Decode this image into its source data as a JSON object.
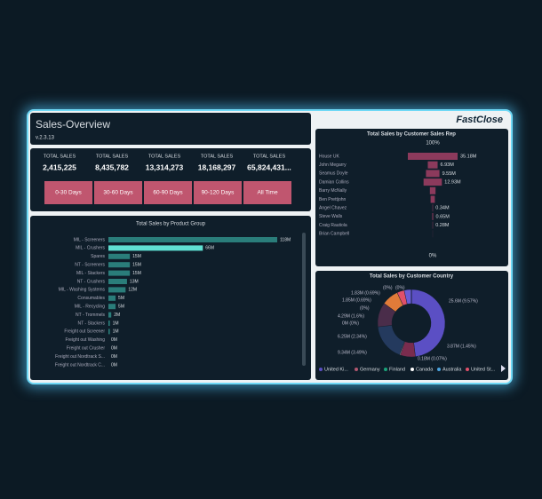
{
  "header": {
    "title": "Sales-Overview",
    "version": "v.2.3.13",
    "logo": "FastClose"
  },
  "kpis": [
    {
      "label": "TOTAL SALES",
      "value": "2,415,225"
    },
    {
      "label": "TOTAL SALES",
      "value": "8,435,782"
    },
    {
      "label": "TOTAL SALES",
      "value": "13,314,273"
    },
    {
      "label": "TOTAL SALES",
      "value": "18,168,297"
    },
    {
      "label": "TOTAL SALES",
      "value": "65,824,431..."
    }
  ],
  "buttons": [
    "0-30 Days",
    "30-60 Days",
    "60-90 Days",
    "90-120 Days",
    "All Time"
  ],
  "chart_data": [
    {
      "type": "bar",
      "title": "Total Sales by Product Group",
      "categories": [
        "MIL - Screeners",
        "MIL - Crushers",
        "Spares",
        "NT - Screeners",
        "MIL - Stackers",
        "NT - Crushers",
        "MIL - Washing Systems",
        "Consumables",
        "MIL - Recycling",
        "NT - Trommels",
        "NT - Stackers",
        "Freight out Screener",
        "Freight out Washing",
        "Freight out Crusher",
        "Freight out Nordtrack S...",
        "Freight out Nordtrack C..."
      ],
      "values": [
        118,
        66,
        15,
        15,
        15,
        13,
        12,
        5,
        5,
        2,
        1,
        1,
        0,
        0,
        0,
        0
      ],
      "value_labels": [
        "118M",
        "66M",
        "15M",
        "15M",
        "15M",
        "13M",
        "12M",
        "5M",
        "5M",
        "2M",
        "1M",
        "1M",
        "0M",
        "0M",
        "0M",
        "0M"
      ],
      "colors": [
        "#2a7d7a",
        "#5fe0d2",
        "#2a7d7a",
        "#2a7d7a",
        "#2a7d7a",
        "#2a7d7a",
        "#2a7d7a",
        "#2a7d7a",
        "#2a7d7a",
        "#2a7d7a",
        "#2a7d7a",
        "#2a7d7a",
        "#2a7d7a",
        "#2a7d7a",
        "#2a7d7a",
        "#2a7d7a"
      ]
    },
    {
      "type": "funnel",
      "title": "Total Sales by Customer Sales Rep",
      "categories": [
        "House UK",
        "John Megarry",
        "Seamus Doyle",
        "Damian Collins",
        "Barry McNally",
        "Ben Prettjohn",
        "Angel Chavez",
        "Steve Walls",
        "Craig Rautiola",
        "Brian Campbell"
      ],
      "values": [
        35.18,
        6.93,
        9.55,
        12.93,
        4,
        3,
        0.34,
        0.65,
        0.28,
        0.1
      ],
      "value_labels": [
        "35.18M",
        "6.93M",
        "9.55M",
        "12.93M",
        null,
        null,
        "0.34M",
        "0.65M",
        "0.28M",
        null
      ],
      "color": "#8c3a5c",
      "top_label": "100%",
      "bottom_label": "0%"
    },
    {
      "type": "pie",
      "donut": true,
      "title": "Total Sales by Customer Country",
      "values": [
        25.6,
        3.87,
        0.18,
        9.34,
        6.25,
        0,
        4.29,
        0,
        1.85,
        1.83,
        0,
        0
      ],
      "value_labels": [
        "25.6M (9.57%)",
        "3.87M (1.45%)",
        "0.18M (0.07%)",
        "9.34M (3.49%)",
        "6.25M (2.34%)",
        "0M (0%)",
        "4.29M (1.6%)",
        "(0%)",
        "1.85M (0.69%)",
        "1.83M (0.69%)",
        "(0%)",
        "(0%)"
      ],
      "colors": [
        "#5b4fc4",
        "#7a2c4e",
        "#e8e8e8",
        "#243a5e",
        "#4a2d4a",
        "#1aa37a",
        "#e07b39",
        "#4aa3df",
        "#e0506a",
        "#6b5cd6",
        "#99aabb",
        "#cccccc"
      ],
      "legend": [
        {
          "name": "United Ki...",
          "color": "#5b4fc4"
        },
        {
          "name": "Germany",
          "color": "#b0576f"
        },
        {
          "name": "Finland",
          "color": "#1aa37a"
        },
        {
          "name": "Canada",
          "color": "#ffffff"
        },
        {
          "name": "Australia",
          "color": "#4aa3df"
        },
        {
          "name": "United St...",
          "color": "#e0506a"
        }
      ]
    }
  ]
}
